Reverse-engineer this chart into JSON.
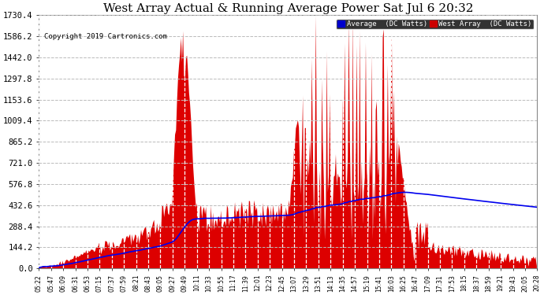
{
  "title": "West Array Actual & Running Average Power Sat Jul 6 20:32",
  "copyright": "Copyright 2019 Cartronics.com",
  "legend_labels": [
    "Average  (DC Watts)",
    "West Array  (DC Watts)"
  ],
  "y_ticks": [
    0.0,
    144.2,
    288.4,
    432.6,
    576.8,
    721.0,
    865.2,
    1009.4,
    1153.6,
    1297.8,
    1442.0,
    1586.2,
    1730.4
  ],
  "ylim": [
    0,
    1730.4
  ],
  "fill_color": "#dd0000",
  "line_color": "#0000ee",
  "background_color": "#ffffff",
  "grid_color_h": "#bbbbbb",
  "grid_color_v": "#ffffff",
  "title_fontsize": 11,
  "x_tick_fontsize": 5.5,
  "y_tick_fontsize": 7.5,
  "x_labels": [
    "05:22",
    "05:47",
    "06:09",
    "06:31",
    "06:53",
    "07:15",
    "07:37",
    "07:59",
    "08:21",
    "08:43",
    "09:05",
    "09:27",
    "09:49",
    "10:11",
    "10:33",
    "10:55",
    "11:17",
    "11:39",
    "12:01",
    "12:23",
    "12:45",
    "13:07",
    "13:29",
    "13:51",
    "14:13",
    "14:35",
    "14:57",
    "15:19",
    "15:41",
    "16:03",
    "16:25",
    "16:47",
    "17:09",
    "17:31",
    "17:53",
    "18:15",
    "18:37",
    "18:59",
    "19:21",
    "19:43",
    "20:05",
    "20:28"
  ]
}
